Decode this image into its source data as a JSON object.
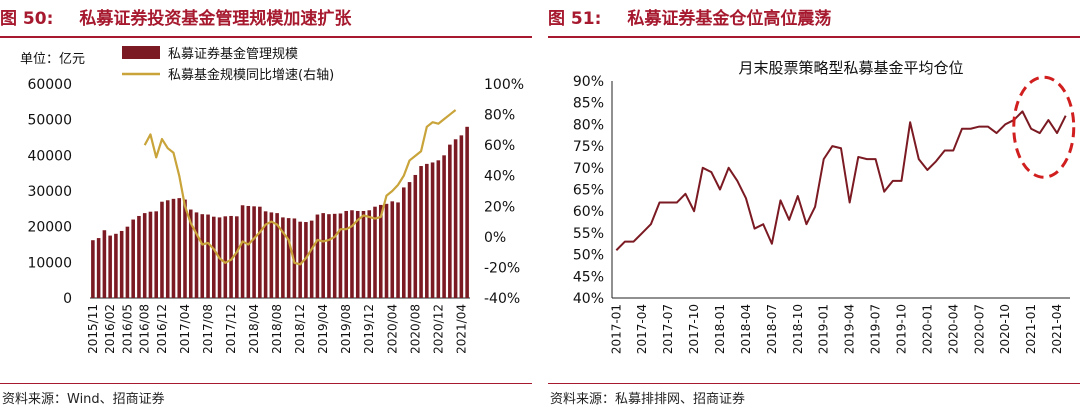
{
  "left": {
    "fig_num": "图 50:",
    "fig_title": "私募证券投资基金管理规模加速扩张",
    "source": "资料来源：Wind、招商证券",
    "unit": "单位：亿元",
    "colors": {
      "bar": "#7b1a22",
      "line": "#c9a43a",
      "title": "#a6192e"
    }
  },
  "right": {
    "fig_num": "图 51:",
    "fig_title": "私募证券基金仓位高位震荡",
    "source": "资料来源：私募排排网、招商证券",
    "colors": {
      "line": "#7b1a22",
      "ellipse": "#d11f1f"
    }
  },
  "chart_data": [
    {
      "type": "bar",
      "title": "",
      "unit_label": "单位：亿元",
      "xlabel": "",
      "ylabel": "",
      "ylim": [
        0,
        60000
      ],
      "y_ticks": [
        "0",
        "10000",
        "20000",
        "30000",
        "40000",
        "50000",
        "60000"
      ],
      "y2lim": [
        -40,
        100
      ],
      "y2_ticks": [
        "-40%",
        "-20%",
        "0%",
        "20%",
        "40%",
        "60%",
        "80%",
        "100%"
      ],
      "x_tick_labels": [
        "2015/11",
        "2016/02",
        "2016/05",
        "2016/08",
        "2016/12",
        "2017/04",
        "2017/08",
        "2017/12",
        "2018/04",
        "2018/08",
        "2018/12",
        "2019/04",
        "2019/08",
        "2019/12",
        "2020/04",
        "2020/08",
        "2020/12",
        "2021/04"
      ],
      "x_tick_index": [
        0,
        3,
        6,
        9,
        12,
        16,
        20,
        24,
        28,
        32,
        36,
        40,
        44,
        48,
        52,
        56,
        60,
        64
      ],
      "legend_position": "top-left",
      "series": [
        {
          "name": "私募证券基金管理规模",
          "kind": "bar",
          "axis": "left",
          "values": [
            16200,
            16800,
            19000,
            17500,
            18000,
            18800,
            20000,
            22000,
            23000,
            23800,
            24200,
            24300,
            27000,
            27400,
            27800,
            28000,
            27600,
            24800,
            24000,
            23500,
            23400,
            22800,
            22600,
            22900,
            23000,
            22900,
            26000,
            25800,
            25700,
            25600,
            24300,
            24000,
            23800,
            22600,
            22400,
            22300,
            21400,
            21300,
            21700,
            23400,
            23800,
            23500,
            23600,
            23700,
            24400,
            24600,
            24400,
            24400,
            24600,
            25600,
            26100,
            26400,
            27100,
            26800,
            31000,
            32500,
            34500,
            37000,
            37600,
            38000,
            38600,
            40000,
            43000,
            44500,
            45600,
            48000
          ]
        },
        {
          "name": "私募基金规模同比增速(右轴)",
          "kind": "line",
          "axis": "right",
          "start_index": 9,
          "values": [
            60,
            67,
            52,
            64,
            58,
            55,
            40,
            20,
            9,
            2,
            -5,
            -4,
            -8,
            -14,
            -17,
            -15,
            -10,
            -3,
            -5,
            -1,
            3,
            8,
            10,
            8,
            3,
            -2,
            -17,
            -18,
            -14,
            -8,
            -2,
            -3,
            -2,
            0,
            5,
            5,
            7,
            11,
            14,
            13,
            12,
            13,
            27,
            30,
            34,
            40,
            50,
            53,
            56,
            72,
            75,
            74,
            77,
            80,
            83
          ]
        }
      ]
    },
    {
      "type": "line",
      "title": "月末股票策略型私募基金平均仓位",
      "xlabel": "",
      "ylabel": "",
      "ylim": [
        40,
        90
      ],
      "y_ticks": [
        "40%",
        "45%",
        "50%",
        "55%",
        "60%",
        "65%",
        "70%",
        "75%",
        "80%",
        "85%",
        "90%"
      ],
      "x_tick_labels": [
        "2017-01",
        "2017-04",
        "2017-07",
        "2017-10",
        "2018-01",
        "2018-04",
        "2018-07",
        "2018-10",
        "2019-01",
        "2019-04",
        "2019-07",
        "2019-10",
        "2020-01",
        "2020-04",
        "2020-07",
        "2020-10",
        "2021-01",
        "2021-04"
      ],
      "x_tick_index": [
        0,
        3,
        6,
        9,
        12,
        15,
        18,
        21,
        24,
        27,
        30,
        33,
        36,
        39,
        42,
        45,
        48,
        51
      ],
      "legend_position": "none",
      "annotation": "dashed red ellipse highlighting 2021 values",
      "series": [
        {
          "name": "",
          "values": [
            51,
            53,
            53,
            55,
            57,
            62,
            62,
            62,
            64,
            60,
            70,
            69,
            65,
            70,
            67,
            63,
            56,
            57,
            52.5,
            62.5,
            58,
            63.5,
            57,
            61,
            72,
            75,
            74.5,
            62,
            72.5,
            72,
            72,
            64.5,
            67,
            67,
            80.5,
            72,
            69.5,
            71.5,
            74,
            74,
            79,
            79,
            79.5,
            79.5,
            78,
            80,
            81,
            83,
            79,
            78,
            81,
            78,
            82
          ]
        }
      ]
    }
  ]
}
